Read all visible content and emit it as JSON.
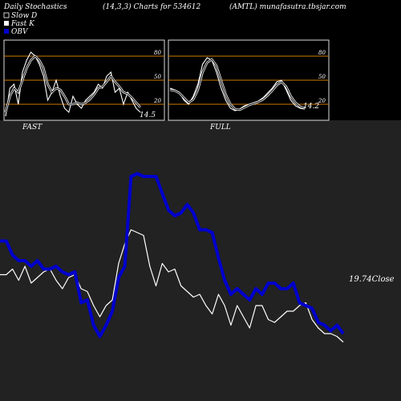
{
  "header": {
    "left": "Daily Stochastics",
    "center": "(14,3,3) Charts for 534612",
    "right": "(AMTL) munafasutra.tbsjar.com"
  },
  "legend": [
    {
      "label": "Slow  D",
      "color": "#000000"
    },
    {
      "label": "Fast K",
      "color": "#ffffff"
    },
    {
      "label": "OBV",
      "color": "#0000cc"
    }
  ],
  "colors": {
    "background": "#000000",
    "main_panel": "#222222",
    "stoch_line": "#ffffff",
    "level_line": "#cc7a00",
    "obv": "#0000cc",
    "close": "#ffffff"
  },
  "chart_data": [
    {
      "type": "line",
      "title": "FAST",
      "levels": [
        80,
        50,
        20
      ],
      "ylim": [
        0,
        100
      ],
      "last_value_label": "14.5",
      "series": [
        {
          "name": "Fast K",
          "values": [
            5,
            40,
            45,
            20,
            60,
            75,
            85,
            80,
            70,
            55,
            25,
            35,
            50,
            30,
            15,
            10,
            30,
            20,
            15,
            25,
            30,
            35,
            45,
            40,
            55,
            60,
            35,
            40,
            20,
            35,
            25,
            15,
            10
          ]
        },
        {
          "name": "Slow  D",
          "values": [
            10,
            30,
            40,
            35,
            50,
            65,
            75,
            80,
            75,
            65,
            45,
            35,
            40,
            38,
            30,
            20,
            20,
            22,
            20,
            22,
            26,
            32,
            40,
            42,
            48,
            55,
            48,
            42,
            35,
            33,
            28,
            22,
            16
          ]
        }
      ]
    },
    {
      "type": "line",
      "title": "FULL",
      "levels": [
        80,
        50,
        20
      ],
      "ylim": [
        0,
        100
      ],
      "last_value_label": "14.2",
      "series": [
        {
          "name": "Fast K",
          "values": [
            40,
            38,
            35,
            25,
            20,
            30,
            45,
            70,
            78,
            75,
            60,
            40,
            25,
            15,
            12,
            14,
            18,
            20,
            22,
            24,
            28,
            34,
            40,
            48,
            50,
            38,
            25,
            18,
            15,
            14
          ]
        },
        {
          "name": "Slow  D",
          "values": [
            38,
            37,
            34,
            28,
            22,
            26,
            38,
            60,
            72,
            76,
            68,
            50,
            32,
            20,
            14,
            13,
            16,
            19,
            21,
            23,
            26,
            31,
            37,
            44,
            48,
            42,
            30,
            22,
            17,
            15
          ]
        }
      ]
    },
    {
      "type": "line",
      "title": "",
      "last_value_label": "19.74",
      "last_value_suffix": "Close",
      "series": [
        {
          "name": "OBV",
          "values": [
            57,
            57,
            52,
            50,
            50,
            48,
            50,
            47,
            47,
            48,
            46,
            45,
            46,
            35,
            36,
            27,
            23,
            27,
            32,
            44,
            48,
            80,
            81,
            80,
            80,
            80,
            74,
            68,
            66,
            67,
            70,
            67,
            61,
            61,
            60,
            51,
            43,
            38,
            40,
            38,
            36,
            40,
            38,
            42,
            42,
            40,
            40,
            42,
            35,
            34,
            33,
            28,
            27,
            25,
            27,
            24
          ]
        },
        {
          "name": "Close",
          "values": [
            45,
            45,
            47,
            43,
            48,
            42,
            44,
            46,
            47,
            43,
            40,
            44,
            45,
            40,
            39,
            34,
            30,
            34,
            36,
            49,
            56,
            61,
            60,
            59,
            48,
            41,
            49,
            46,
            47,
            41,
            39,
            37,
            38,
            34,
            31,
            38,
            34,
            27,
            34,
            30,
            26,
            34,
            34,
            29,
            28,
            30,
            32,
            32,
            34,
            35,
            29,
            26,
            24,
            24,
            23,
            21
          ]
        }
      ]
    }
  ]
}
